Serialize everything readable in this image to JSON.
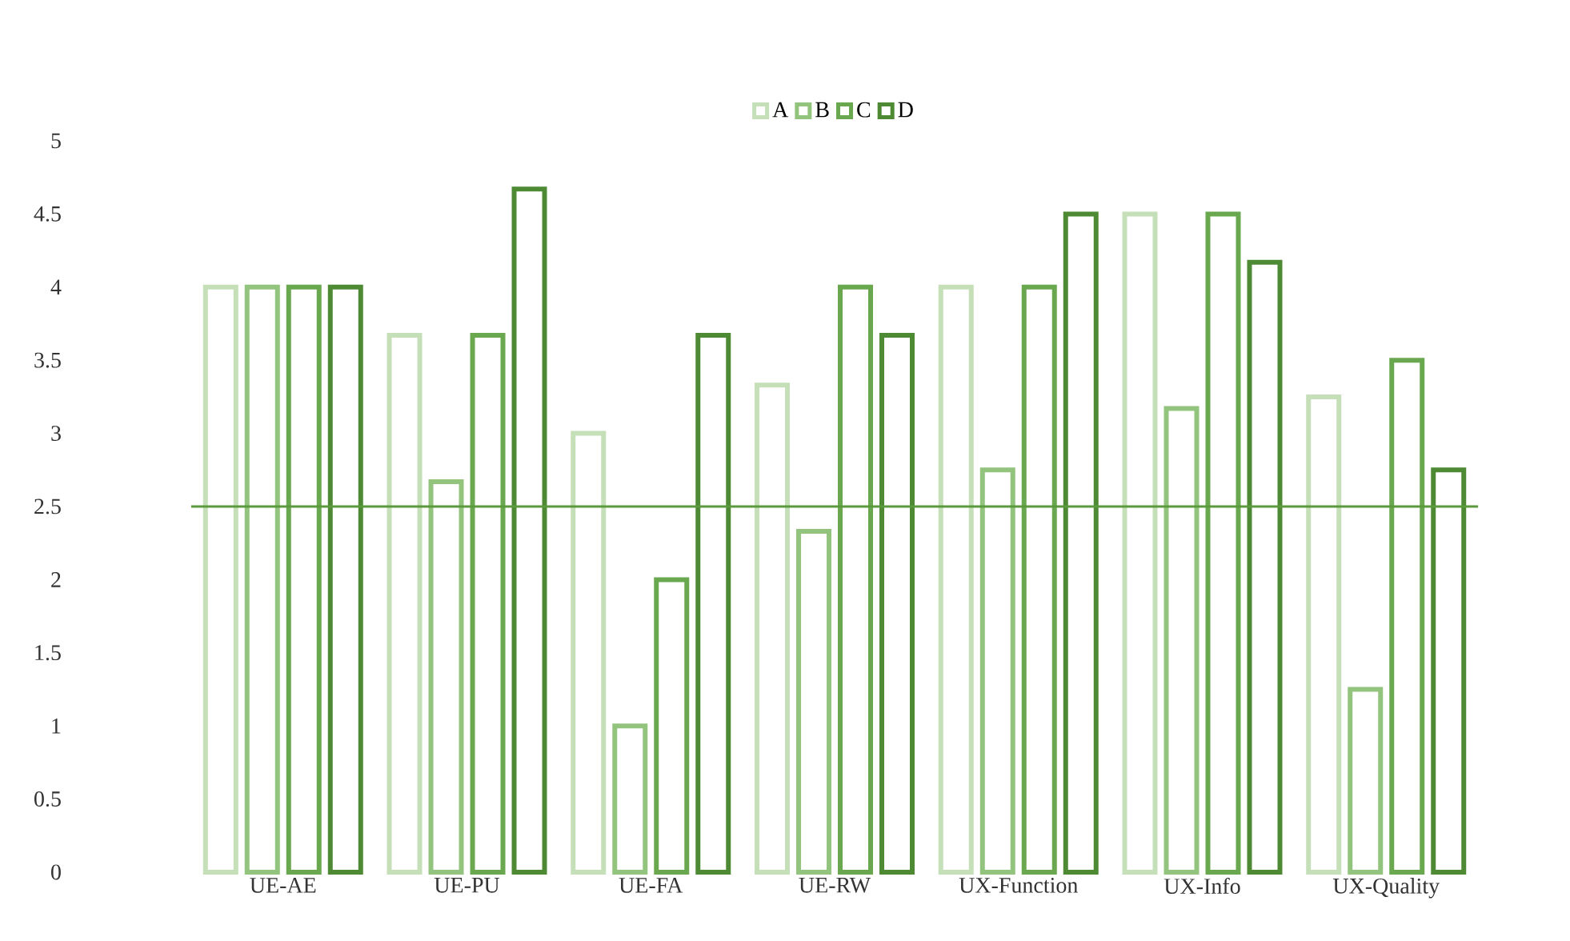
{
  "chart_data": {
    "type": "bar",
    "categories": [
      "UE-AE",
      "UE-PU",
      "UE-FA",
      "UE-RW",
      "UX-Function",
      "UX-Info",
      "UX-Quality"
    ],
    "series": [
      {
        "name": "A",
        "color": "#c5dfb8",
        "values": [
          4,
          3.67,
          3,
          3.33,
          4,
          4.5,
          3.25
        ]
      },
      {
        "name": "B",
        "color": "#93c47d",
        "values": [
          4,
          2.67,
          1,
          2.33,
          2.75,
          3.17,
          1.25
        ]
      },
      {
        "name": "C",
        "color": "#6aa84f",
        "values": [
          4,
          3.67,
          2,
          4,
          4,
          4.5,
          3.5
        ]
      },
      {
        "name": "D",
        "color": "#4e8a34",
        "values": [
          4,
          4.67,
          3.67,
          3.67,
          4.5,
          4.17,
          2.75
        ]
      }
    ],
    "ylim": [
      0,
      5
    ],
    "yticks": [
      0,
      0.5,
      1,
      1.5,
      2,
      2.5,
      3,
      3.5,
      4,
      4.5,
      5
    ],
    "legend": "top",
    "ref_lines": [
      {
        "axis": "y",
        "value": 2.5,
        "color": "#5a9a3c"
      }
    ]
  }
}
